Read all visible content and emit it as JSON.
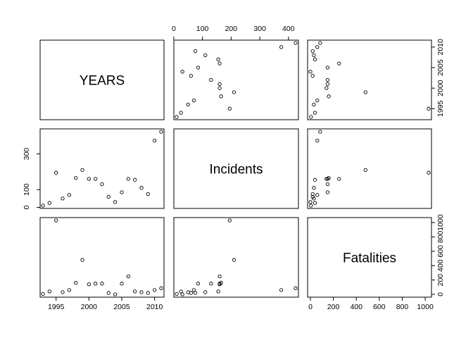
{
  "chart_data": {
    "type": "scatter",
    "variables": [
      "YEARS",
      "Incidents",
      "Fatalities"
    ],
    "records": [
      {
        "YEARS": 1993,
        "Incidents": 10,
        "Fatalities": 5
      },
      {
        "YEARS": 1994,
        "Incidents": 25,
        "Fatalities": 40
      },
      {
        "YEARS": 1995,
        "Incidents": 195,
        "Fatalities": 1030
      },
      {
        "YEARS": 1996,
        "Incidents": 50,
        "Fatalities": 30
      },
      {
        "YEARS": 1997,
        "Incidents": 70,
        "Fatalities": 60
      },
      {
        "YEARS": 1998,
        "Incidents": 165,
        "Fatalities": 160
      },
      {
        "YEARS": 1999,
        "Incidents": 210,
        "Fatalities": 480
      },
      {
        "YEARS": 2000,
        "Incidents": 160,
        "Fatalities": 140
      },
      {
        "YEARS": 2001,
        "Incidents": 160,
        "Fatalities": 150
      },
      {
        "YEARS": 2002,
        "Incidents": 130,
        "Fatalities": 150
      },
      {
        "YEARS": 2003,
        "Incidents": 60,
        "Fatalities": 20
      },
      {
        "YEARS": 2004,
        "Incidents": 30,
        "Fatalities": 0
      },
      {
        "YEARS": 2005,
        "Incidents": 85,
        "Fatalities": 150
      },
      {
        "YEARS": 2006,
        "Incidents": 160,
        "Fatalities": 250
      },
      {
        "YEARS": 2007,
        "Incidents": 155,
        "Fatalities": 40
      },
      {
        "YEARS": 2008,
        "Incidents": 110,
        "Fatalities": 30
      },
      {
        "YEARS": 2009,
        "Incidents": 75,
        "Fatalities": 20
      },
      {
        "YEARS": 2010,
        "Incidents": 375,
        "Fatalities": 60
      },
      {
        "YEARS": 2011,
        "Incidents": 425,
        "Fatalities": 85
      }
    ],
    "axes": {
      "YEARS": {
        "range": [
          1993,
          2011
        ],
        "ticks": [
          "1995",
          "2000",
          "2005",
          "2010"
        ],
        "tick_values": [
          1995,
          2000,
          2005,
          2010
        ]
      },
      "Incidents": {
        "range": [
          10,
          425
        ],
        "ticks": [
          "0",
          "100",
          "200",
          "300",
          "400"
        ],
        "tick_values": [
          0,
          100,
          200,
          300,
          400
        ],
        "left_ticks": [
          "0",
          "100",
          "300"
        ],
        "left_tick_values": [
          0,
          100,
          300
        ]
      },
      "Fatalities": {
        "range": [
          0,
          1030
        ],
        "ticks": [
          "0",
          "200",
          "400",
          "600",
          "800",
          "1000"
        ],
        "tick_values": [
          0,
          200,
          400,
          600,
          800,
          1000
        ]
      }
    },
    "grid": false,
    "legend": "none"
  }
}
